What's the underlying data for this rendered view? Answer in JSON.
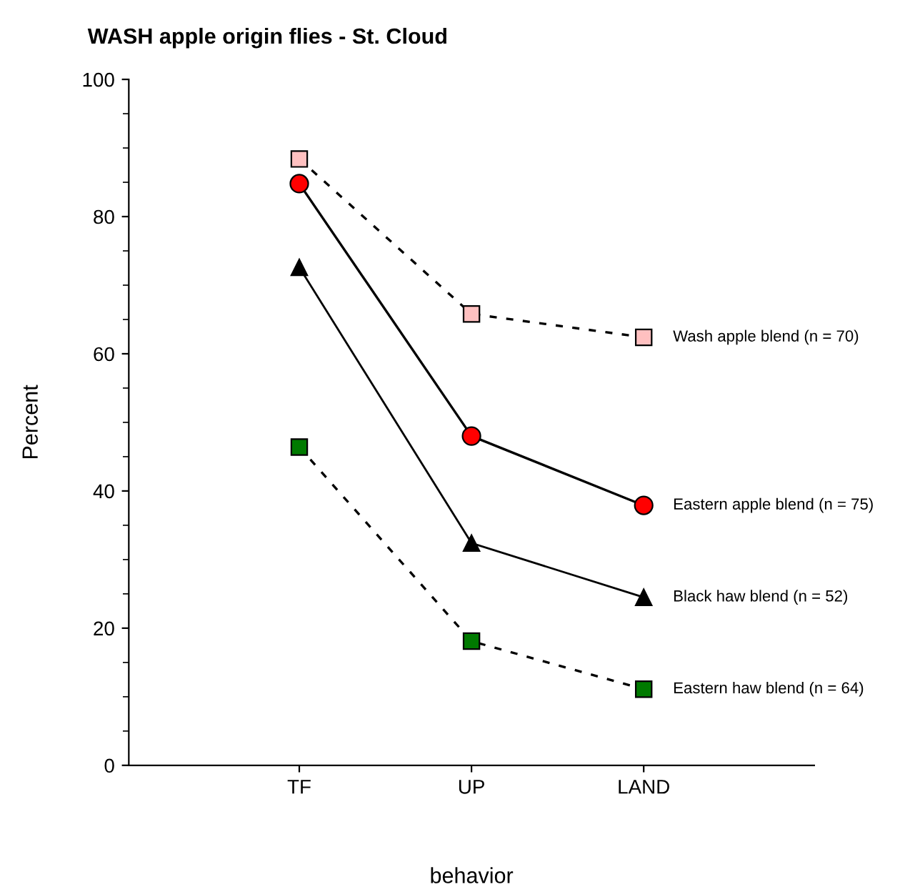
{
  "chart_data": {
    "type": "line",
    "title": "WASH apple origin flies - St. Cloud",
    "xlabel": "behavior",
    "ylabel": "Percent",
    "categories": [
      "TF",
      "UP",
      "LAND"
    ],
    "ylim": [
      0,
      100
    ],
    "yticks": [
      0,
      20,
      40,
      60,
      80,
      100
    ],
    "grid": false,
    "legend": false,
    "series": [
      {
        "name": "Wash apple blend (n = 70)",
        "color": "#ffc0c0",
        "marker": "square",
        "line_style": "dashed",
        "values": [
          88.4,
          65.8,
          62.4
        ]
      },
      {
        "name": "Eastern apple blend (n = 75)",
        "color": "#ff0000",
        "marker": "circle",
        "line_style": "solid",
        "values": [
          84.8,
          48.0,
          37.9
        ]
      },
      {
        "name": "Black haw blend (n = 52)",
        "color": "#000000",
        "marker": "triangle",
        "line_style": "solid",
        "values": [
          72.6,
          32.4,
          24.5
        ]
      },
      {
        "name": "Eastern haw blend (n = 64)",
        "color": "#007a00",
        "marker": "square",
        "line_style": "dashed",
        "values": [
          46.4,
          18.1,
          11.1
        ]
      }
    ]
  }
}
